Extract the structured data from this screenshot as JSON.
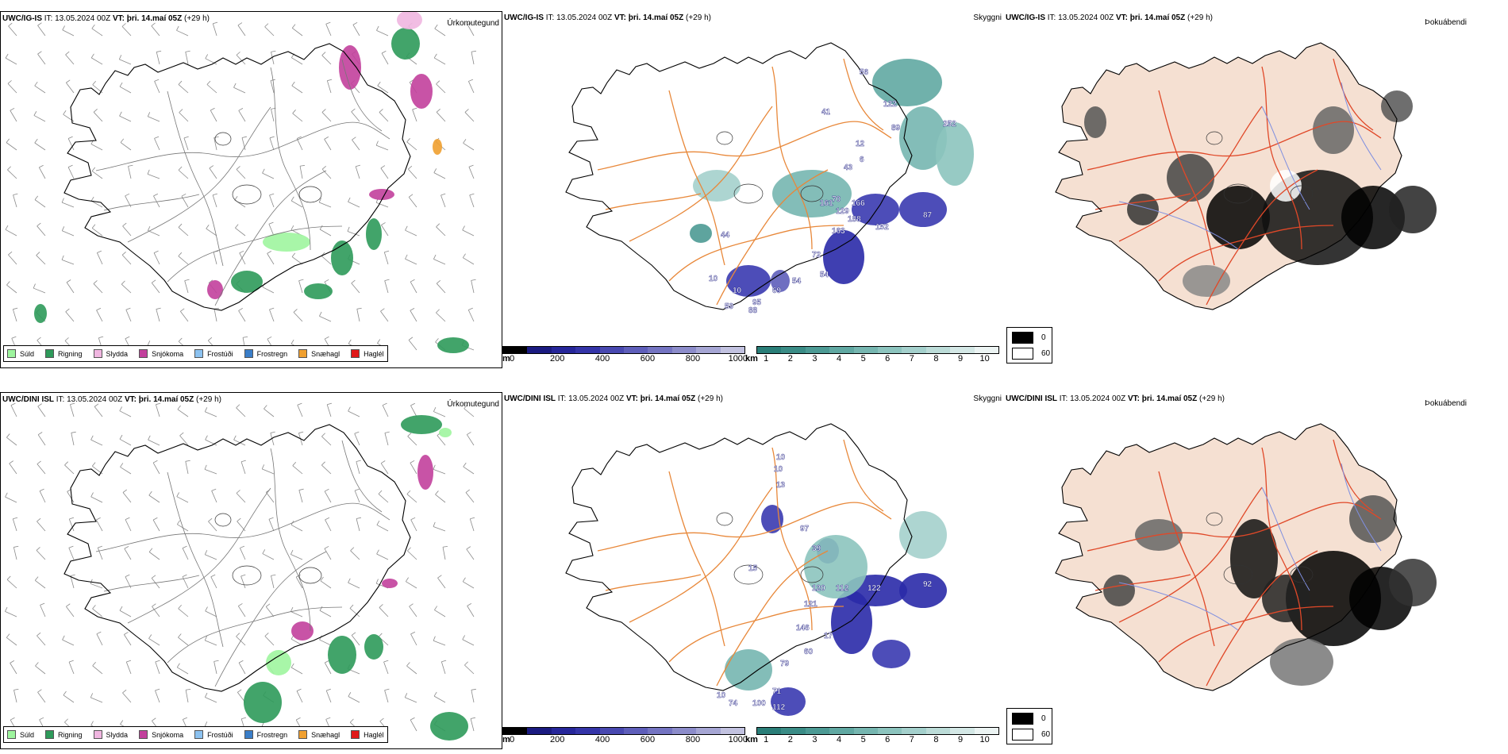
{
  "panels": {
    "ig_precip": {
      "model": "UWC/IG-IS",
      "it_label": "IT:",
      "it_value": "13.05.2024 00Z",
      "vt_label": "VT:",
      "vt_value": "þri. 14.maí 05Z",
      "lead": "(+29 h)",
      "title": "Úrkomutegund"
    },
    "ig_vis": {
      "model": "UWC/IG-IS",
      "it_label": "IT:",
      "it_value": "13.05.2024 00Z",
      "vt_label": "VT:",
      "vt_value": "þri. 14.maí 05Z",
      "lead": "(+29 h)",
      "title": "Skyggni"
    },
    "ig_fog": {
      "model": "UWC/IG-IS",
      "it_label": "IT:",
      "it_value": "13.05.2024 00Z",
      "vt_label": "VT:",
      "vt_value": "þri. 14.maí 05Z",
      "lead": "(+29 h)",
      "title": "Þokuábendi"
    },
    "dini_precip": {
      "model": "UWC/DINI ISL",
      "it_label": "IT:",
      "it_value": "13.05.2024 00Z",
      "vt_label": "VT:",
      "vt_value": "þri. 14.maí 05Z",
      "lead": "(+29 h)",
      "title": "Úrkomutegund"
    },
    "dini_vis": {
      "model": "UWC/DINI ISL",
      "it_label": "IT:",
      "it_value": "13.05.2024 00Z",
      "vt_label": "VT:",
      "vt_value": "þri. 14.maí 05Z",
      "lead": "(+29 h)",
      "title": "Skyggni"
    },
    "dini_fog": {
      "model": "UWC/DINI ISL",
      "it_label": "IT:",
      "it_value": "13.05.2024 00Z",
      "vt_label": "VT:",
      "vt_value": "þri. 14.maí 05Z",
      "lead": "(+29 h)",
      "title": "Þokuábendi"
    }
  },
  "precip_legend": [
    {
      "label": "Súld",
      "color": "#9ef59e"
    },
    {
      "label": "Rigning",
      "color": "#2e9a5a"
    },
    {
      "label": "Slydda",
      "color": "#f0b6e0"
    },
    {
      "label": "Snjókoma",
      "color": "#c2409c"
    },
    {
      "label": "Frostúði",
      "color": "#8cc2f0"
    },
    {
      "label": "Frostregn",
      "color": "#3a7ec8"
    },
    {
      "label": "Snæhagl",
      "color": "#f0a030"
    },
    {
      "label": "Haglél",
      "color": "#e01818"
    }
  ],
  "vis_scale_m": {
    "unit": "m",
    "ticks": [
      "0",
      "200",
      "400",
      "600",
      "800",
      "1000"
    ],
    "colors": [
      "#000000",
      "#1a1a80",
      "#26269a",
      "#3434a8",
      "#4848b0",
      "#5e5eba",
      "#7474c2",
      "#8c8cca",
      "#a6a6d4",
      "#c2c2e0"
    ]
  },
  "vis_scale_km": {
    "unit": "km",
    "ticks": [
      "1",
      "2",
      "3",
      "4",
      "5",
      "6",
      "7",
      "8",
      "9",
      "10"
    ],
    "colors": [
      "#2a7e78",
      "#3a8c86",
      "#4c9a94",
      "#60a8a2",
      "#76b6b0",
      "#8cc4be",
      "#a4d0cc",
      "#bcdcd8",
      "#d4e8e6",
      "#ecf4f3"
    ]
  },
  "fog_legend": [
    {
      "label": "0",
      "color": "#000000"
    },
    {
      "label": "60",
      "color": "#ffffff"
    }
  ],
  "vis_labels_ig": [
    "56",
    "122",
    "41",
    "89",
    "252",
    "12",
    "6",
    "43",
    "161",
    "70",
    "166",
    "129",
    "188",
    "87",
    "152",
    "163",
    "44",
    "72",
    "54",
    "54",
    "69",
    "10",
    "95",
    "59",
    "88",
    "10"
  ],
  "vis_labels_dini": [
    "10",
    "10",
    "13",
    "97",
    "39",
    "15",
    "120",
    "112",
    "122",
    "92",
    "121",
    "146",
    "17",
    "60",
    "79",
    "71",
    "100",
    "112",
    "74",
    "10"
  ],
  "colors": {
    "coast": "#000000",
    "roads": "#e8883a",
    "fog_land": "#f5e0d2",
    "fog_roads": "#e04828",
    "fog_rivers": "#7f8fe0",
    "wind": "#8a8a8a"
  }
}
